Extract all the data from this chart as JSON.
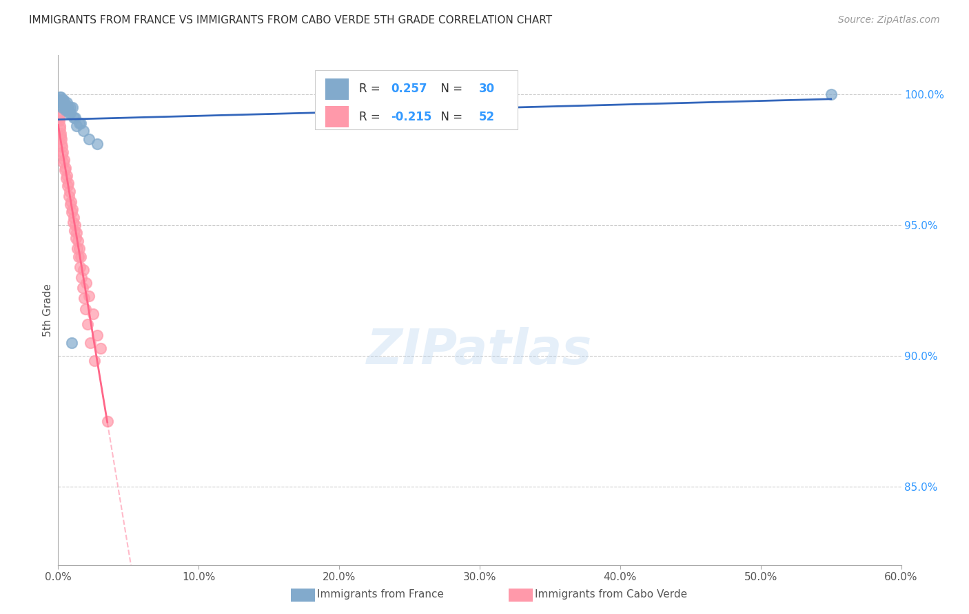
{
  "title": "IMMIGRANTS FROM FRANCE VS IMMIGRANTS FROM CABO VERDE 5TH GRADE CORRELATION CHART",
  "source": "Source: ZipAtlas.com",
  "ylabel_label": "5th Grade",
  "france_R": 0.257,
  "france_N": 30,
  "caboverde_R": -0.215,
  "caboverde_N": 52,
  "france_color": "#82AACC",
  "caboverde_color": "#FF99AA",
  "france_trend_color": "#3366BB",
  "caboverde_trend_color": "#FF6688",
  "legend_text_color": "#3399FF",
  "watermark": "ZIPatlas",
  "xlim": [
    0,
    60
  ],
  "ylim": [
    82,
    101.5
  ],
  "x_ticks": [
    0,
    10,
    20,
    30,
    40,
    50,
    60
  ],
  "x_tick_labels": [
    "0.0%",
    "10.0%",
    "20.0%",
    "30.0%",
    "40.0%",
    "50.0%",
    "60.0%"
  ],
  "y_ticks": [
    85,
    90,
    95,
    100
  ],
  "y_tick_labels": [
    "85.0%",
    "90.0%",
    "95.0%",
    "100.0%"
  ],
  "france_x": [
    0.08,
    0.12,
    0.18,
    0.22,
    0.28,
    0.35,
    0.42,
    0.5,
    0.6,
    0.72,
    0.85,
    1.0,
    1.2,
    1.5,
    0.15,
    0.25,
    0.38,
    0.48,
    0.58,
    0.68,
    0.78,
    0.88,
    1.1,
    1.3,
    1.8,
    2.2,
    0.95,
    1.6,
    2.8,
    55.0
  ],
  "france_y": [
    99.8,
    99.6,
    99.9,
    99.7,
    99.5,
    99.8,
    99.6,
    99.4,
    99.7,
    99.5,
    99.3,
    99.5,
    99.1,
    98.9,
    99.9,
    99.7,
    99.8,
    99.5,
    99.6,
    99.4,
    99.3,
    99.5,
    99.1,
    98.8,
    98.6,
    98.3,
    90.5,
    98.9,
    98.1,
    100.0
  ],
  "caboverde_x": [
    0.05,
    0.08,
    0.12,
    0.18,
    0.22,
    0.28,
    0.35,
    0.42,
    0.5,
    0.6,
    0.7,
    0.8,
    0.9,
    1.0,
    1.1,
    1.2,
    1.3,
    1.4,
    1.5,
    1.6,
    1.8,
    2.0,
    2.2,
    2.5,
    2.8,
    3.0,
    3.5,
    0.1,
    0.15,
    0.2,
    0.25,
    0.3,
    0.38,
    0.45,
    0.55,
    0.65,
    0.75,
    0.85,
    0.95,
    1.05,
    1.15,
    1.25,
    1.35,
    1.45,
    1.55,
    1.65,
    1.75,
    1.85,
    1.95,
    2.1,
    2.3,
    2.6
  ],
  "caboverde_y": [
    99.2,
    99.0,
    98.8,
    98.5,
    98.3,
    98.0,
    97.8,
    97.5,
    97.2,
    96.9,
    96.6,
    96.3,
    95.9,
    95.6,
    95.3,
    95.0,
    94.7,
    94.4,
    94.1,
    93.8,
    93.3,
    92.8,
    92.3,
    91.6,
    90.8,
    90.3,
    87.5,
    99.1,
    98.7,
    98.4,
    98.1,
    97.7,
    97.4,
    97.1,
    96.8,
    96.5,
    96.1,
    95.8,
    95.5,
    95.1,
    94.8,
    94.5,
    94.1,
    93.8,
    93.4,
    93.0,
    92.6,
    92.2,
    91.8,
    91.2,
    90.5,
    89.8
  ]
}
